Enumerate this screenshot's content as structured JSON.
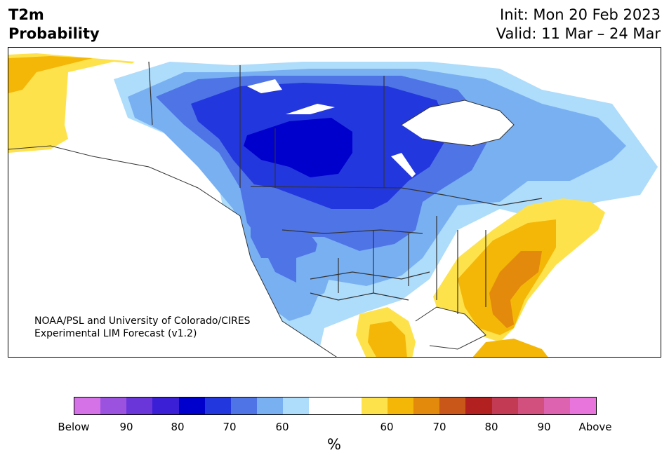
{
  "title": {
    "variable": "T2m",
    "kind": "Probability",
    "init": "Init: Mon 20 Feb 2023",
    "valid": "Valid: 11 Mar – 24 Mar"
  },
  "credit": {
    "line1": "NOAA/PSL and University of Colorado/CIRES",
    "line2": "Experimental LIM Forecast (v1.2)"
  },
  "colorbar": {
    "unit": "%",
    "colors": [
      "#d672e8",
      "#9b52df",
      "#6a36d9",
      "#3a1fd6",
      "#0000cc",
      "#2337de",
      "#4f74e6",
      "#78b0f2",
      "#aedcfb",
      "#ffffff",
      "#ffffff",
      "#fee24c",
      "#f4b707",
      "#e3890c",
      "#c9571a",
      "#b2211f",
      "#c23a54",
      "#d1507e",
      "#dd63b0",
      "#e775dc"
    ],
    "ticks": [
      "Below",
      "90",
      "80",
      "70",
      "60",
      "60",
      "70",
      "80",
      "90",
      "Above"
    ]
  },
  "palette": {
    "below60": "#aedcfb",
    "below70": "#78b0f2",
    "below80": "#4f74e6",
    "below90": "#2337de",
    "belowDeep": "#0000cc",
    "above60": "#fee24c",
    "above70": "#f4b707",
    "above80": "#e3890c",
    "above90": "#c9571a",
    "water": "#ffffff",
    "border": "#333333"
  }
}
